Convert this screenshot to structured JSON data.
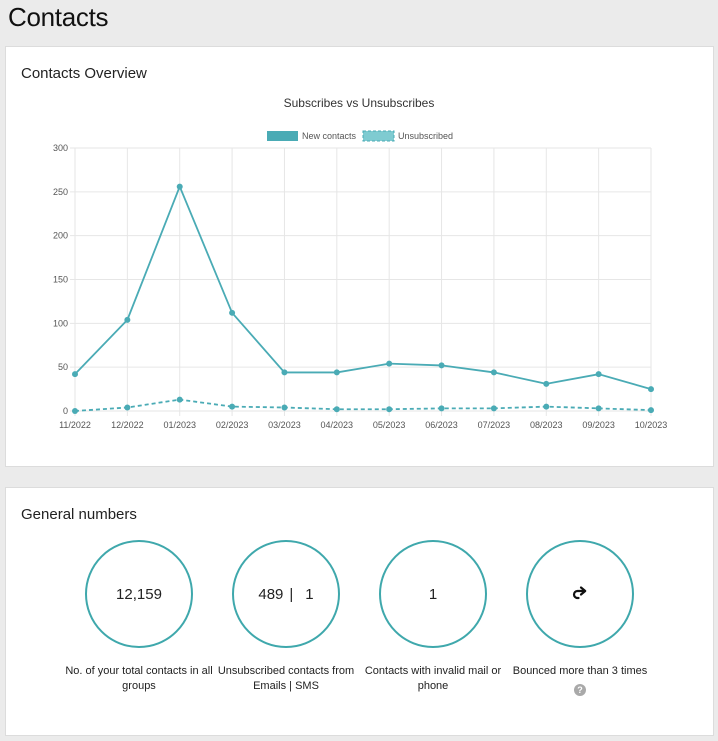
{
  "page": {
    "title": "Contacts"
  },
  "overview": {
    "title": "Contacts Overview"
  },
  "chart_data": {
    "type": "line",
    "title": "Subscribes vs Unsubscribes",
    "categories": [
      "11/2022",
      "12/2022",
      "01/2023",
      "02/2023",
      "03/2023",
      "04/2023",
      "05/2023",
      "06/2023",
      "07/2023",
      "08/2023",
      "09/2023",
      "10/2023"
    ],
    "series": [
      {
        "name": "New contacts",
        "values": [
          42,
          104,
          256,
          112,
          44,
          44,
          54,
          52,
          44,
          31,
          42,
          25
        ],
        "color": "#4aabb5",
        "dashed": false
      },
      {
        "name": "Unsubscribed",
        "values": [
          0,
          4,
          13,
          5,
          4,
          2,
          2,
          3,
          3,
          5,
          3,
          1
        ],
        "color": "#4aabb5",
        "dashed": true
      }
    ],
    "yticks": [
      0,
      50,
      100,
      150,
      200,
      250,
      300
    ],
    "ylim": [
      0,
      300
    ],
    "grid": true,
    "legend": "top"
  },
  "numbers": {
    "title": "General numbers",
    "items": [
      {
        "value": "12,159",
        "label": "No. of your total contacts in all groups"
      },
      {
        "value_a": "489",
        "value_b": "1",
        "separator": "|",
        "label": "Unsubscribed contacts from Emails | SMS"
      },
      {
        "value": "1",
        "label": "Contacts with invalid mail or phone"
      },
      {
        "icon": "redo-arrow-icon",
        "label": "Bounced more than 3 times",
        "help": "?"
      }
    ],
    "accent": "#3fa8ac"
  }
}
